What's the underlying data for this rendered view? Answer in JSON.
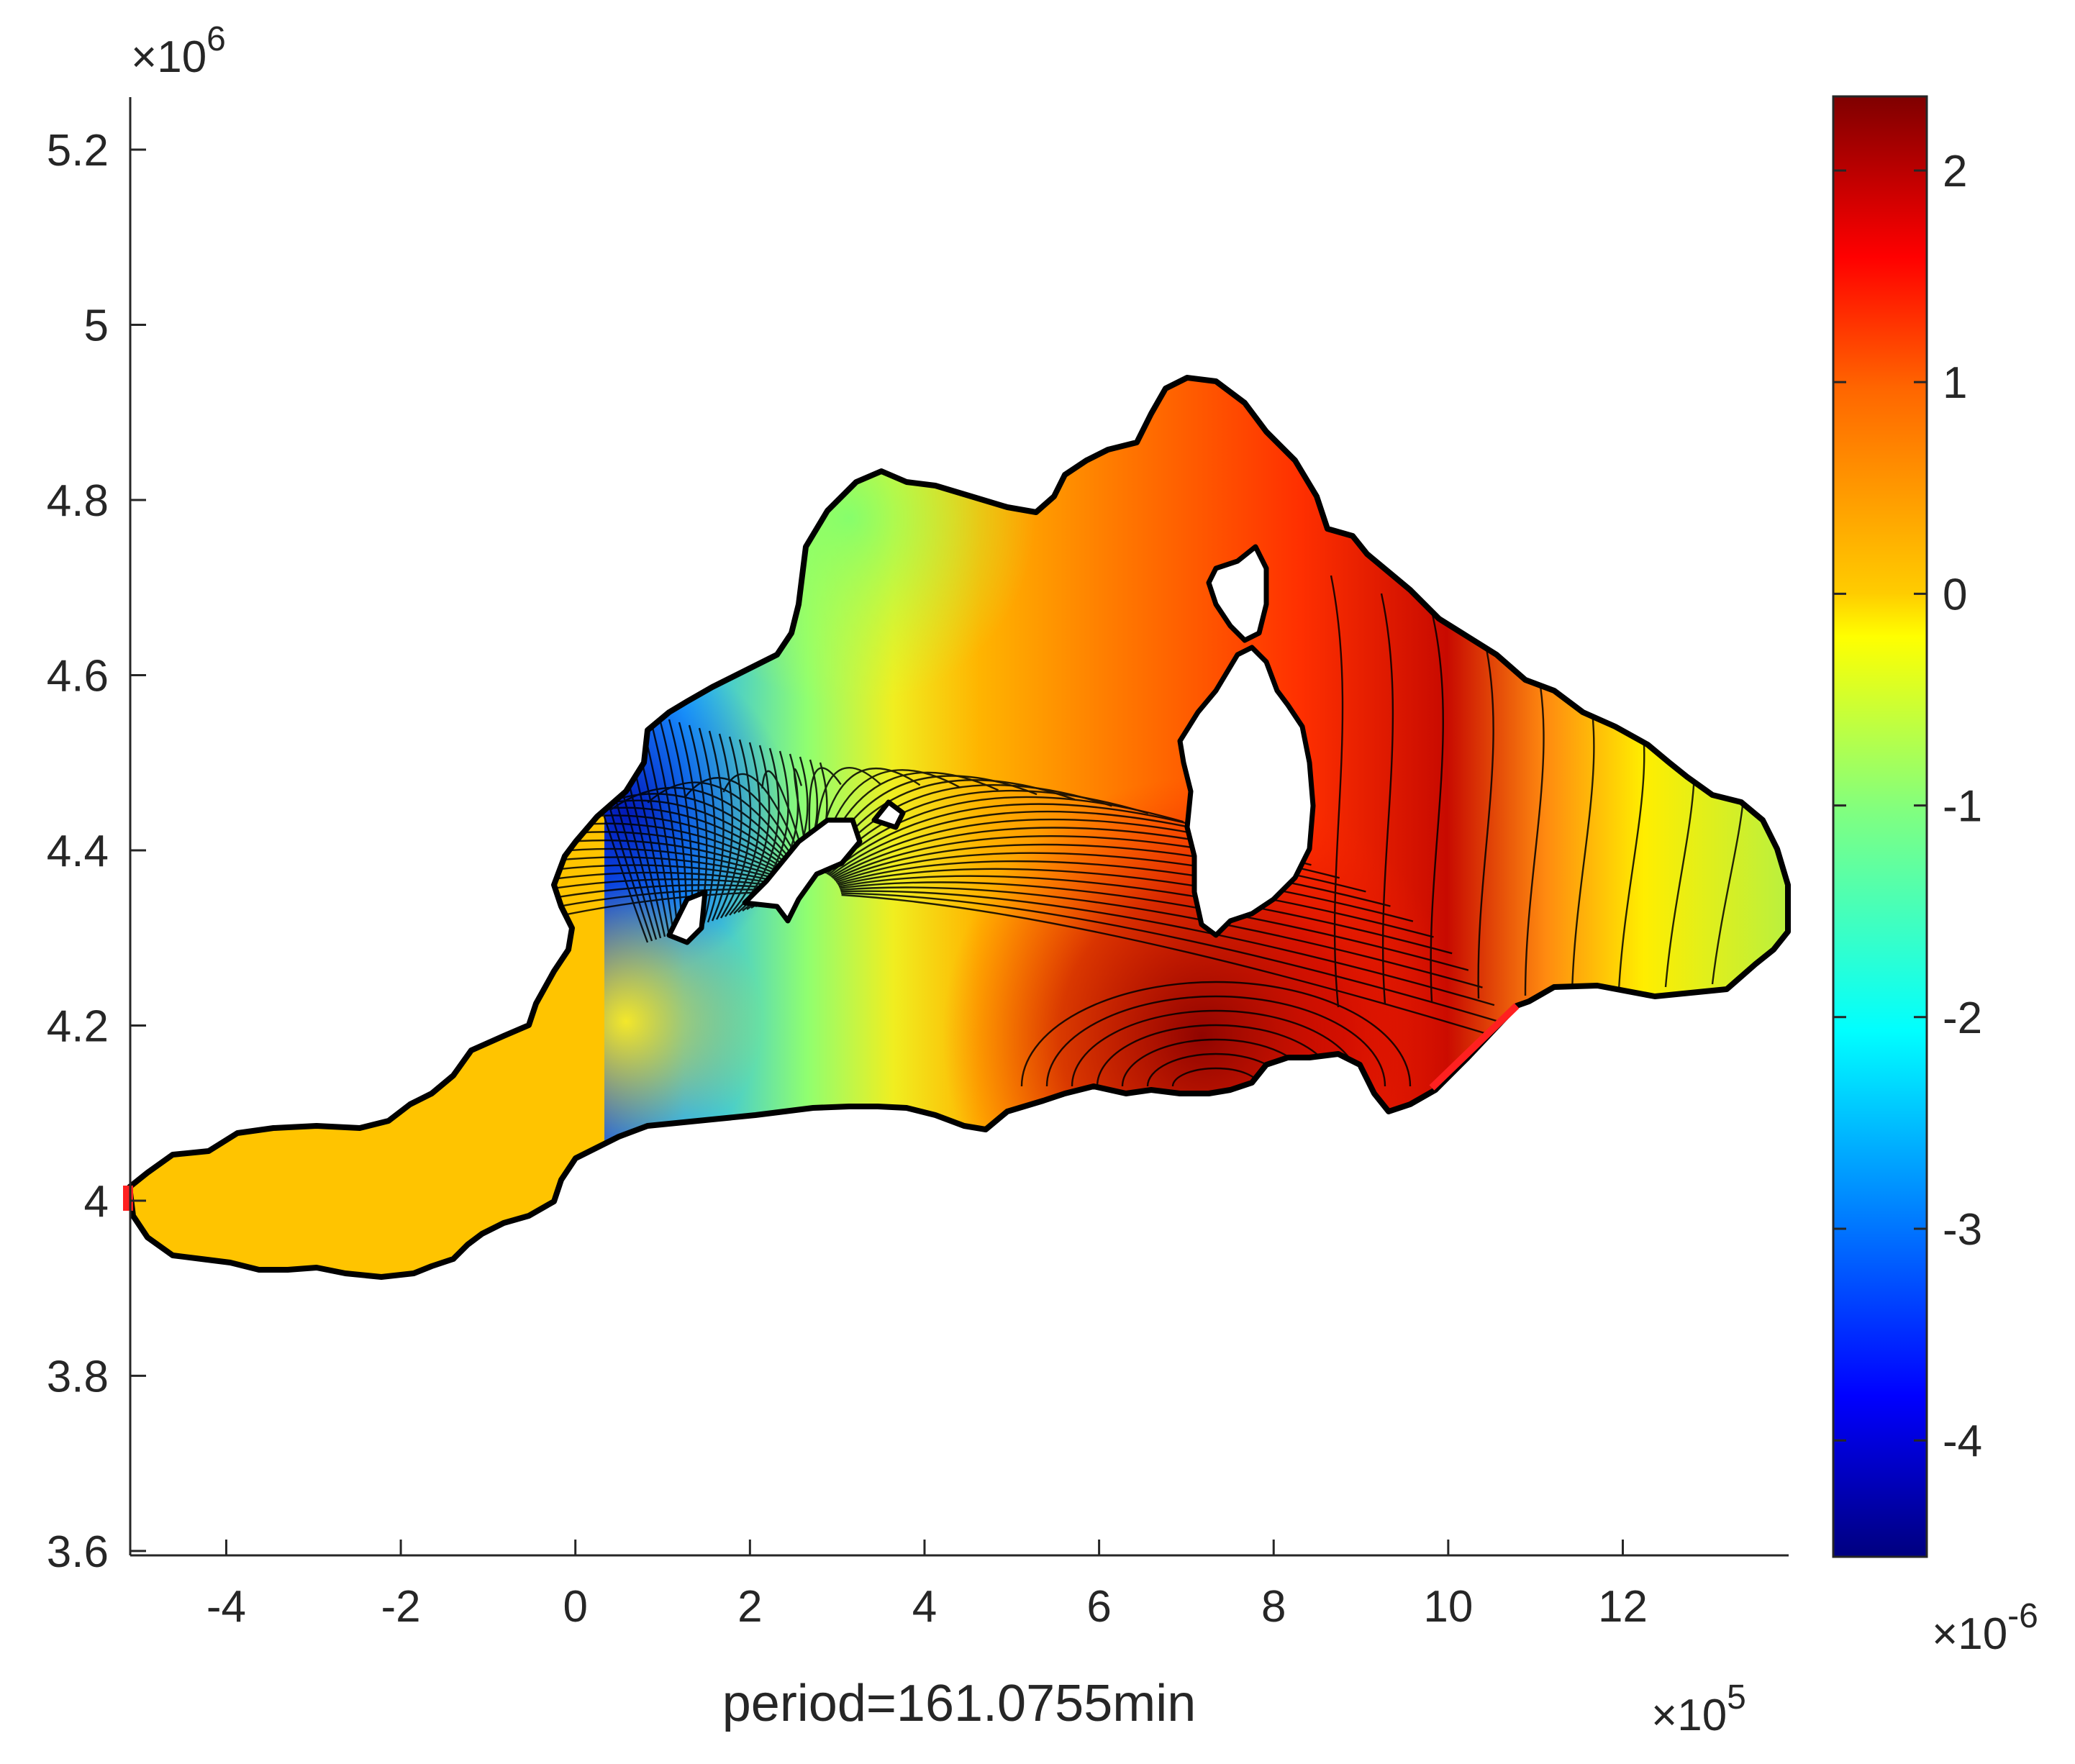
{
  "chart_data": {
    "type": "contour_map",
    "xlabel": "period=161.0755min",
    "x_exponent": "×10",
    "x_exponent_power": "5",
    "y_exponent": "×10",
    "y_exponent_power": "6",
    "xlim": [
      -5.1,
      13.9
    ],
    "ylim": [
      3.595,
      5.26
    ],
    "x_ticks": [
      {
        "value": -4,
        "label": "-4"
      },
      {
        "value": -2,
        "label": "-2"
      },
      {
        "value": 0,
        "label": "0"
      },
      {
        "value": 2,
        "label": "2"
      },
      {
        "value": 4,
        "label": "4"
      },
      {
        "value": 6,
        "label": "6"
      },
      {
        "value": 8,
        "label": "8"
      },
      {
        "value": 10,
        "label": "10"
      },
      {
        "value": 12,
        "label": "12"
      }
    ],
    "y_ticks": [
      {
        "value": 3.6,
        "label": "3.6"
      },
      {
        "value": 3.8,
        "label": "3.8"
      },
      {
        "value": 4.0,
        "label": "4"
      },
      {
        "value": 4.2,
        "label": "4.2"
      },
      {
        "value": 4.4,
        "label": "4.4"
      },
      {
        "value": 4.6,
        "label": "4.6"
      },
      {
        "value": 4.8,
        "label": "4.8"
      },
      {
        "value": 5.0,
        "label": "5"
      },
      {
        "value": 5.2,
        "label": "5.2"
      }
    ],
    "colorbar": {
      "range": [
        -4.55,
        2.35
      ],
      "exponent": "×10",
      "exponent_power": "-6",
      "colormap": "jet",
      "ticks": [
        {
          "value": 2,
          "label": "2"
        },
        {
          "value": 1,
          "label": "1"
        },
        {
          "value": 0,
          "label": "0"
        },
        {
          "value": -1,
          "label": "-1"
        },
        {
          "value": -2,
          "label": "-2"
        },
        {
          "value": -3,
          "label": "-3"
        },
        {
          "value": -4,
          "label": "-4"
        }
      ]
    },
    "grid": false,
    "colors": {
      "coastline": "#000000",
      "open_boundary": "#ff2020",
      "axis": "#262626"
    }
  }
}
